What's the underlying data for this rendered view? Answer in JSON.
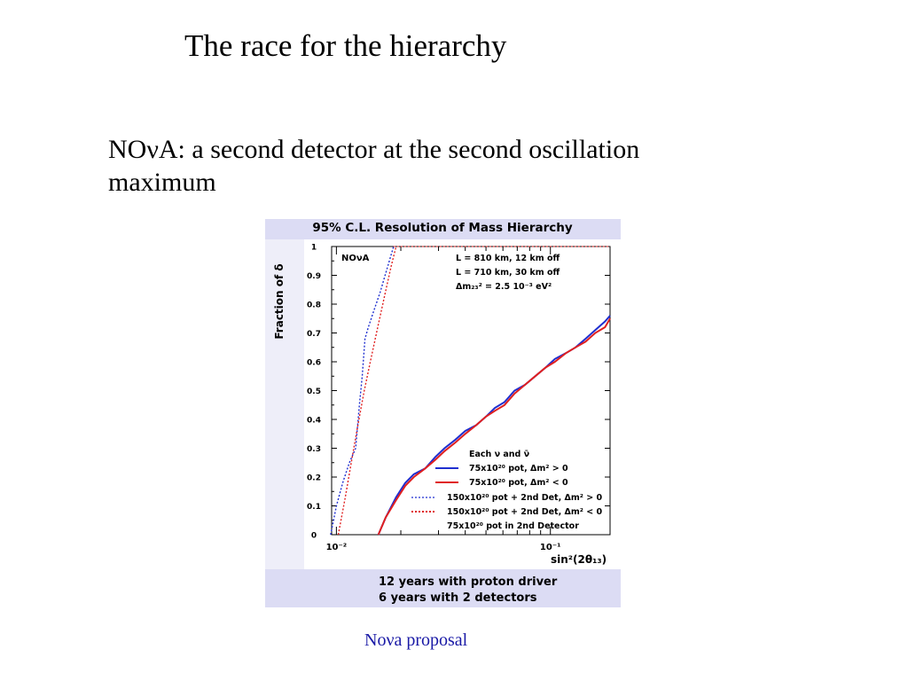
{
  "slide": {
    "title": "The race for the hierarchy",
    "subtitle": "NOνA: a second detector at the second oscillation maximum",
    "caption": "Noνa proposal"
  },
  "figure": {
    "header": "95% C.L. Resolution of Mass Hierarchy",
    "footer_line1": "12 years with proton driver",
    "footer_line2": "6 years with 2 detectors",
    "inset_label": "NOνA",
    "params": [
      "L = 810 km, 12 km off",
      "L = 710 km, 30 km off",
      "Δm₂₃² = 2.5 10⁻³ eV²"
    ],
    "legend_title": "Each ν and ν̄",
    "legend_items": [
      "75x10²⁰ pot, Δm² > 0",
      "75x10²⁰ pot, Δm² < 0",
      "150x10²⁰ pot + 2nd Det, Δm² > 0",
      "150x10²⁰ pot + 2nd Det, Δm² < 0",
      "75x10²⁰ pot in 2nd Detector"
    ]
  },
  "chart_data": {
    "type": "line",
    "title": "95% C.L. Resolution of Mass Hierarchy",
    "xlabel": "sin²(2θ₁₃)",
    "ylabel": "Fraction of δ",
    "xscale": "log",
    "xlim": [
      0.0095,
      0.19
    ],
    "ylim": [
      0,
      1
    ],
    "x_ticks": [
      {
        "value": 0.01,
        "label": "10⁻²"
      },
      {
        "value": 0.1,
        "label": "10⁻¹"
      }
    ],
    "y_ticks": [
      0,
      0.1,
      0.2,
      0.3,
      0.4,
      0.5,
      0.6,
      0.7,
      0.8,
      0.9,
      1
    ],
    "y_tick_labels": [
      "0",
      "0.1",
      "0.2",
      "0.3",
      "0.4",
      "0.5",
      "0.6",
      "0.7",
      "0.8",
      "0.9",
      "1"
    ],
    "legend_position": "bottom-right",
    "series": [
      {
        "name": "75x10²⁰ pot, Δm² > 0",
        "color": "#1f2fd0",
        "style": "solid",
        "x": [
          0.0157,
          0.017,
          0.019,
          0.021,
          0.023,
          0.026,
          0.029,
          0.032,
          0.036,
          0.04,
          0.045,
          0.05,
          0.055,
          0.061,
          0.068,
          0.076,
          0.085,
          0.095,
          0.105,
          0.118,
          0.131,
          0.146,
          0.162,
          0.18,
          0.19
        ],
        "y": [
          0.0,
          0.06,
          0.13,
          0.18,
          0.21,
          0.23,
          0.27,
          0.3,
          0.33,
          0.36,
          0.38,
          0.41,
          0.44,
          0.46,
          0.5,
          0.52,
          0.55,
          0.58,
          0.61,
          0.63,
          0.65,
          0.68,
          0.71,
          0.74,
          0.76
        ]
      },
      {
        "name": "75x10²⁰ pot, Δm² < 0",
        "color": "#e02020",
        "style": "solid",
        "x": [
          0.0157,
          0.017,
          0.019,
          0.021,
          0.023,
          0.026,
          0.029,
          0.032,
          0.036,
          0.04,
          0.045,
          0.05,
          0.055,
          0.061,
          0.068,
          0.076,
          0.085,
          0.095,
          0.105,
          0.118,
          0.131,
          0.146,
          0.162,
          0.18,
          0.19
        ],
        "y": [
          0.0,
          0.06,
          0.12,
          0.17,
          0.2,
          0.23,
          0.26,
          0.29,
          0.32,
          0.35,
          0.38,
          0.41,
          0.43,
          0.45,
          0.49,
          0.52,
          0.55,
          0.58,
          0.6,
          0.63,
          0.65,
          0.67,
          0.7,
          0.72,
          0.75
        ]
      },
      {
        "name": "150x10²⁰ pot + 2nd Det, Δm² > 0",
        "color": "#1f2fd0",
        "style": "dotted",
        "x": [
          0.0094,
          0.01,
          0.0107,
          0.0115,
          0.0123,
          0.0128,
          0.0132,
          0.0136,
          0.0141,
          0.015,
          0.016,
          0.0172,
          0.0185
        ],
        "y": [
          0.0,
          0.1,
          0.18,
          0.25,
          0.3,
          0.45,
          0.55,
          0.68,
          0.72,
          0.78,
          0.84,
          0.92,
          1.0
        ]
      },
      {
        "name": "150x10²⁰ pot + 2nd Det, Δm² < 0",
        "color": "#e02020",
        "style": "dotted",
        "x": [
          0.0102,
          0.011,
          0.0118,
          0.0126,
          0.0135,
          0.0145,
          0.0156,
          0.0168,
          0.018,
          0.019
        ],
        "y": [
          0.0,
          0.13,
          0.26,
          0.38,
          0.5,
          0.61,
          0.72,
          0.83,
          0.93,
          1.0
        ]
      }
    ]
  }
}
